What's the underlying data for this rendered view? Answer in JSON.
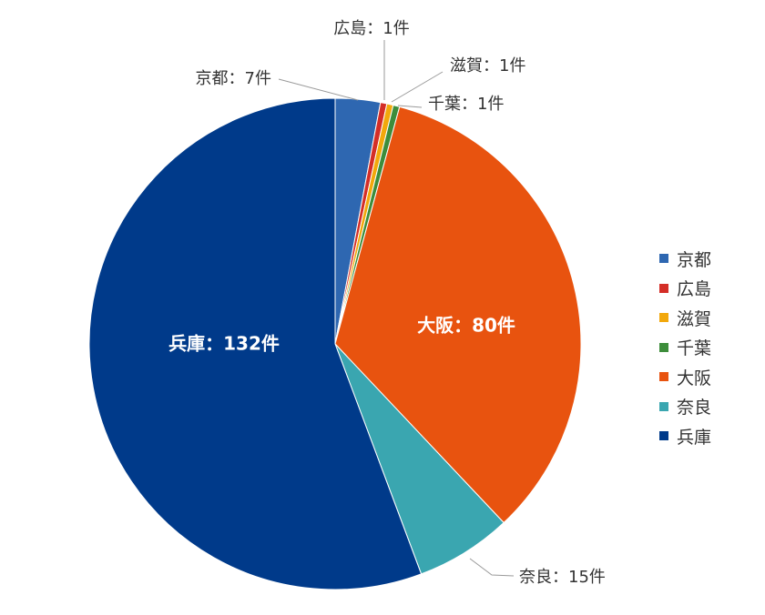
{
  "chart_data": {
    "type": "pie",
    "unit": "件",
    "separator": "：",
    "title": "",
    "slices": [
      {
        "label": "京都",
        "value": 7,
        "color": "#2e67b1"
      },
      {
        "label": "広島",
        "value": 1,
        "color": "#d42e27"
      },
      {
        "label": "滋賀",
        "value": 1,
        "color": "#f2a80c"
      },
      {
        "label": "千葉",
        "value": 1,
        "color": "#3d8d3b"
      },
      {
        "label": "大阪",
        "value": 80,
        "color": "#e8530f"
      },
      {
        "label": "奈良",
        "value": 15,
        "color": "#3aa6b0"
      },
      {
        "label": "兵庫",
        "value": 132,
        "color": "#003a8a"
      }
    ],
    "data_labels": [
      "京都：7件",
      "広島：1件",
      "滋賀：1件",
      "千葉：1件",
      "大阪：80件",
      "奈良：15件",
      "兵庫：132件"
    ],
    "legend": {
      "position": "right",
      "entries": [
        "京都",
        "広島",
        "滋賀",
        "千葉",
        "大阪",
        "奈良",
        "兵庫"
      ]
    }
  }
}
